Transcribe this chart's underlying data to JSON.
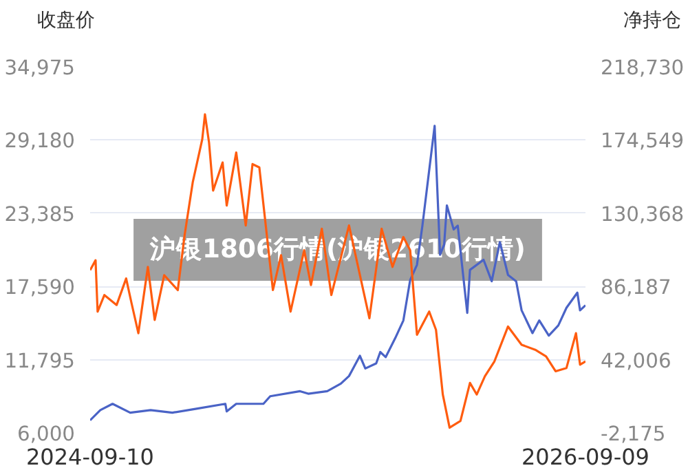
{
  "chart_data": {
    "type": "line",
    "title": "沪银1806行情(沪银2610行情)",
    "ylabel": "收盘价",
    "y2label": "净持仓",
    "xlim": [
      "2024-09-10",
      "2026-09-09"
    ],
    "xticks": [
      "2024-09-10",
      "2026-09-09"
    ],
    "ylim": [
      6000,
      34975
    ],
    "yticks": [
      {
        "value": 6000,
        "label": "6,000"
      },
      {
        "value": 11795,
        "label": "11,795"
      },
      {
        "value": 17590,
        "label": "17,590"
      },
      {
        "value": 23385,
        "label": "23,385"
      },
      {
        "value": 29180,
        "label": "29,180"
      },
      {
        "value": 34975,
        "label": "34,975"
      }
    ],
    "y2lim": [
      -2175,
      218730
    ],
    "y2ticks": [
      {
        "value": -2175,
        "label": "-2,175"
      },
      {
        "value": 42006,
        "label": "42,006"
      },
      {
        "value": 86187,
        "label": "86,187"
      },
      {
        "value": 130368,
        "label": "130,368"
      },
      {
        "value": 174549,
        "label": "174,549"
      },
      {
        "value": 218730,
        "label": "218,730"
      }
    ],
    "grid": "y",
    "series": [
      {
        "color": "#4a63c6",
        "x": [
          "2024-09-10",
          "2024-09-25",
          "2024-10-13",
          "2024-11-08",
          "2024-12-08",
          "2025-01-09",
          "2025-02-12",
          "2025-03-28",
          "2025-03-30",
          "2025-04-13",
          "2025-05-23",
          "2025-06-02",
          "2025-07-16",
          "2025-07-28",
          "2025-08-25",
          "2025-09-14",
          "2025-09-26",
          "2025-10-12",
          "2025-10-20",
          "2025-11-05",
          "2025-11-11",
          "2025-11-19",
          "2025-12-03",
          "2025-12-15",
          "2025-12-25",
          "2026-01-04",
          "2026-01-12",
          "2026-01-30",
          "2026-02-07",
          "2026-02-13",
          "2026-02-17",
          "2026-02-27",
          "2026-03-05",
          "2026-03-19",
          "2026-03-23",
          "2026-04-12",
          "2026-04-24",
          "2026-05-06",
          "2026-05-18",
          "2026-05-30",
          "2026-06-07",
          "2026-06-23",
          "2026-07-03",
          "2026-07-17",
          "2026-07-31",
          "2026-08-12",
          "2026-08-28",
          "2026-09-01",
          "2026-09-09"
        ],
        "values": [
          7000,
          7800,
          8300,
          7600,
          7800,
          7600,
          7900,
          8300,
          7700,
          8300,
          8300,
          8900,
          9300,
          9100,
          9300,
          9900,
          10500,
          12100,
          11100,
          11500,
          12400,
          12000,
          13500,
          14900,
          18100,
          19300,
          22400,
          30300,
          20100,
          20900,
          24000,
          22100,
          22400,
          15500,
          18900,
          19700,
          18000,
          21100,
          18500,
          18000,
          15700,
          13900,
          14900,
          13700,
          14500,
          15900,
          17100,
          15700,
          16100
        ]
      },
      {
        "color": "#ff5c0f",
        "axis": "y2",
        "x": [
          "2024-09-10",
          "2024-09-18",
          "2024-09-21",
          "2024-10-01",
          "2024-10-19",
          "2024-11-02",
          "2024-11-10",
          "2024-11-20",
          "2024-12-04",
          "2024-12-14",
          "2024-12-28",
          "2025-01-17",
          "2025-01-27",
          "2025-02-08",
          "2025-02-22",
          "2025-02-26",
          "2025-03-04",
          "2025-03-10",
          "2025-03-24",
          "2025-03-30",
          "2025-04-13",
          "2025-04-27",
          "2025-05-07",
          "2025-05-17",
          "2025-06-06",
          "2025-06-18",
          "2025-07-02",
          "2025-07-22",
          "2025-08-01",
          "2025-08-17",
          "2025-08-31",
          "2025-09-26",
          "2025-10-26",
          "2025-11-13",
          "2025-11-29",
          "2025-12-15",
          "2025-12-25",
          "2026-01-04",
          "2026-01-22",
          "2026-02-01",
          "2026-02-11",
          "2026-02-21",
          "2026-03-09",
          "2026-03-23",
          "2026-04-02",
          "2026-04-14",
          "2026-04-28",
          "2026-05-18",
          "2026-06-07",
          "2026-06-27",
          "2026-07-13",
          "2026-07-27",
          "2026-08-12",
          "2026-08-26",
          "2026-09-01",
          "2026-09-09"
        ],
        "values": [
          96000,
          102000,
          71000,
          81000,
          75000,
          91000,
          76000,
          58000,
          98000,
          66000,
          93000,
          84000,
          117000,
          149000,
          175000,
          190000,
          173000,
          144000,
          161000,
          135000,
          167000,
          123000,
          160000,
          158000,
          84000,
          105000,
          71000,
          108000,
          87000,
          121000,
          81000,
          123000,
          67000,
          121000,
          98000,
          116000,
          108000,
          57000,
          71000,
          60000,
          21000,
          1000,
          5000,
          28000,
          21000,
          32000,
          41000,
          62000,
          51000,
          48000,
          44000,
          35000,
          37000,
          58000,
          39000,
          41000
        ]
      }
    ]
  }
}
